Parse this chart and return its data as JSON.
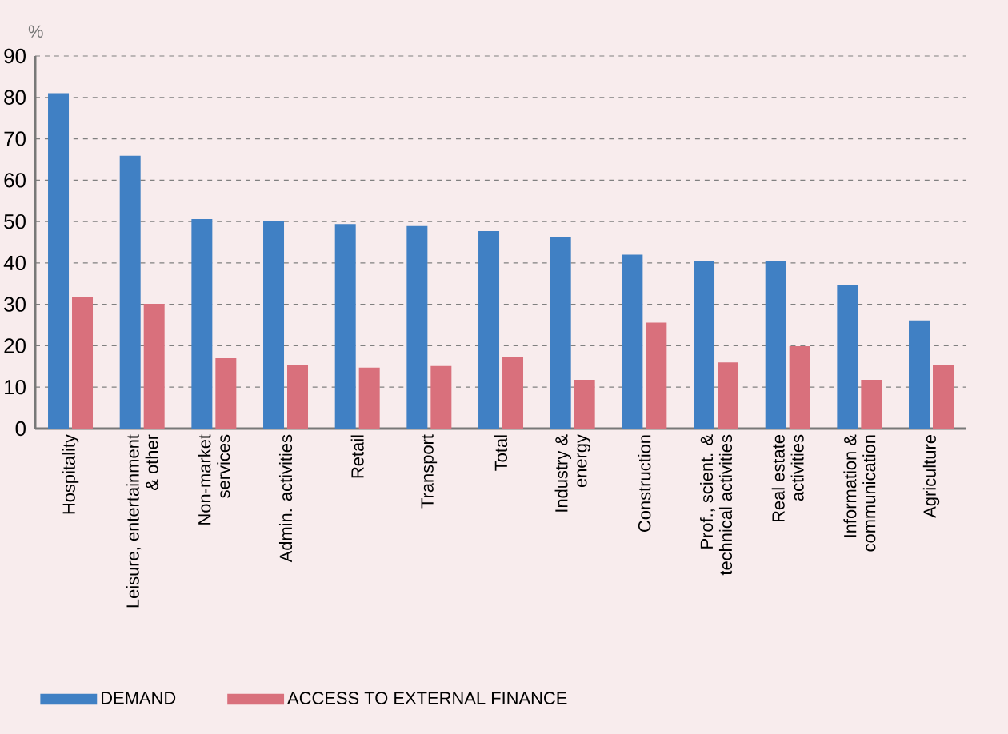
{
  "chart_data": {
    "type": "bar",
    "ylabel": "%",
    "categories": [
      "Hospitality",
      "Leisure, entertainment & other",
      "Non-market services",
      "Admin. activities",
      "Retail",
      "Transport",
      "Total",
      "Industry & energy",
      "Construction",
      "Prof., scient. & technical activities",
      "Real estate activities",
      "Information & communication",
      "Agriculture"
    ],
    "series": [
      {
        "name": "DEMAND",
        "color": "#4080c4",
        "values": [
          81.0,
          65.9,
          50.6,
          50.1,
          49.4,
          48.9,
          47.7,
          46.2,
          42.0,
          40.4,
          40.4,
          34.6,
          26.1
        ]
      },
      {
        "name": "ACCESS TO EXTERNAL FINANCE",
        "color": "#d9707c",
        "values": [
          31.8,
          30.1,
          17.0,
          15.4,
          14.7,
          15.1,
          17.2,
          11.8,
          25.6,
          16.0,
          19.9,
          11.8,
          15.4
        ]
      }
    ],
    "ylim": [
      0,
      90
    ],
    "yticks": [
      0,
      10,
      20,
      30,
      40,
      50,
      60,
      70,
      80,
      90
    ],
    "grid": "y",
    "legend": "bottom"
  }
}
